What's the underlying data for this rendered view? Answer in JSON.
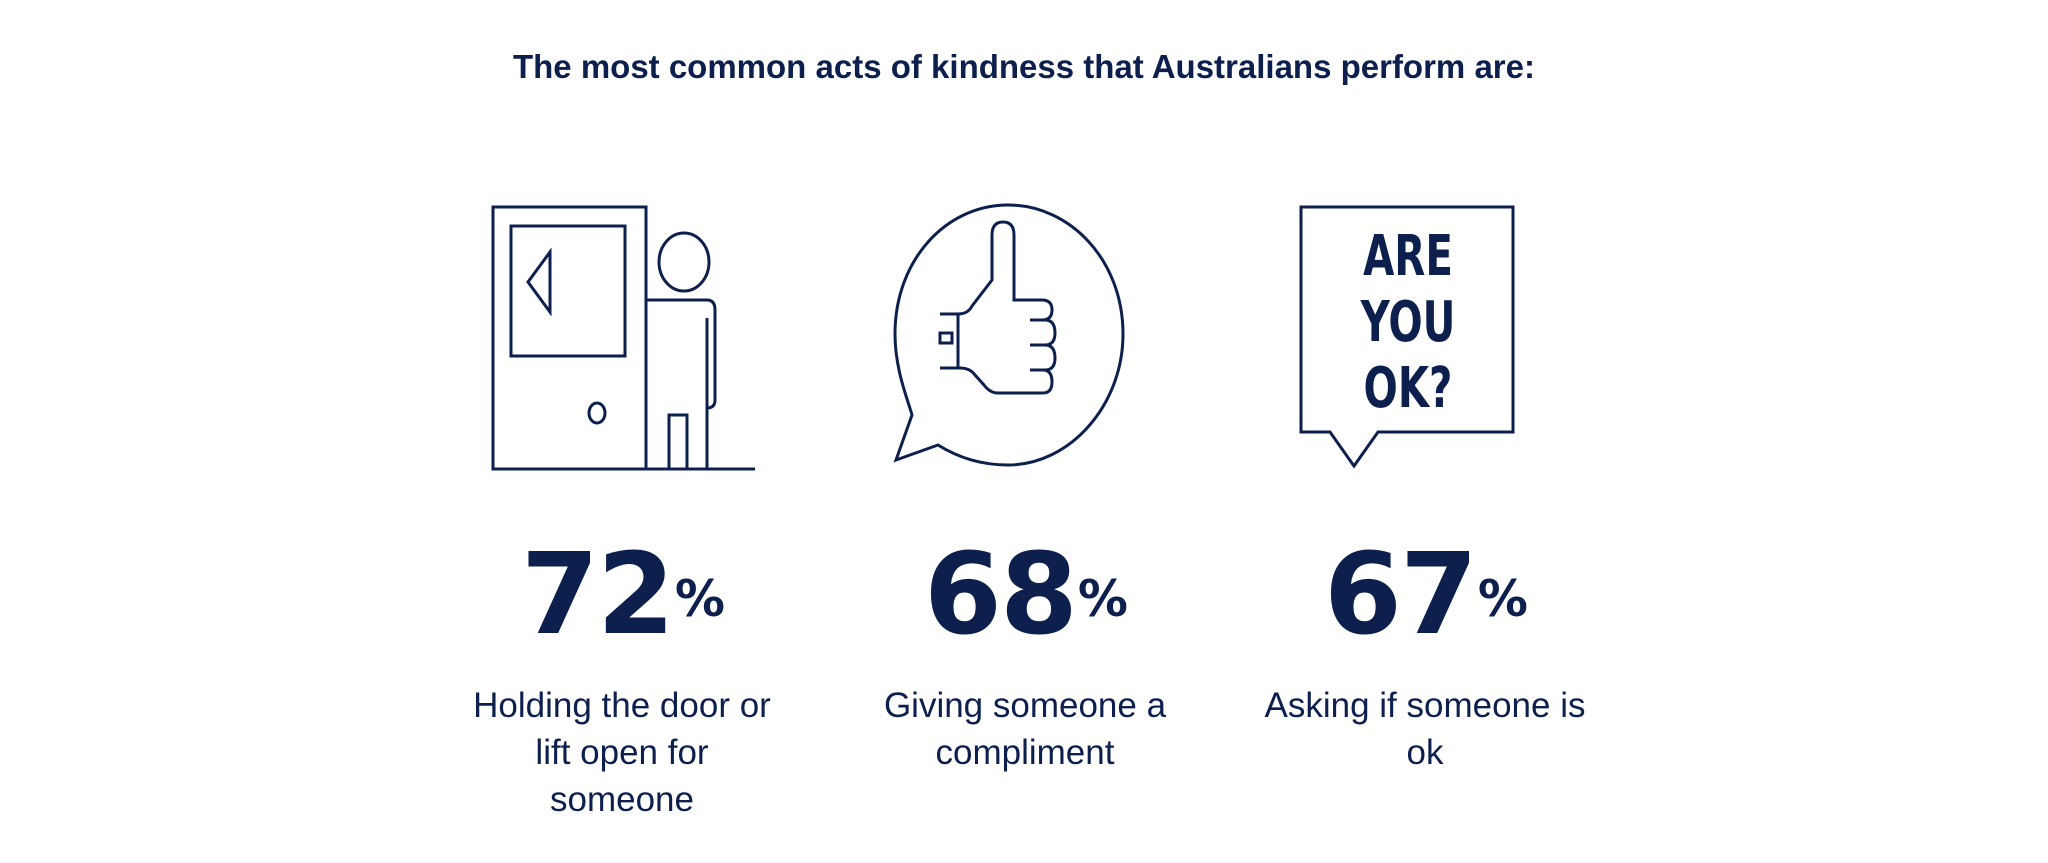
{
  "title": "The most common acts of kindness that Australians perform are:",
  "items": [
    {
      "icon": "door-person-icon",
      "value": "72",
      "unit": "%",
      "label": "Holding the door or lift open for someone"
    },
    {
      "icon": "thumbs-up-speech-bubble-icon",
      "value": "68",
      "unit": "%",
      "label": "Giving someone a compliment"
    },
    {
      "icon": "are-you-ok-speech-box-icon",
      "value": "67",
      "unit": "%",
      "label": "Asking if someone is ok",
      "icon_text": [
        "ARE",
        "YOU",
        "OK?"
      ]
    }
  ],
  "colors": {
    "navy": "#0c1f4d"
  }
}
